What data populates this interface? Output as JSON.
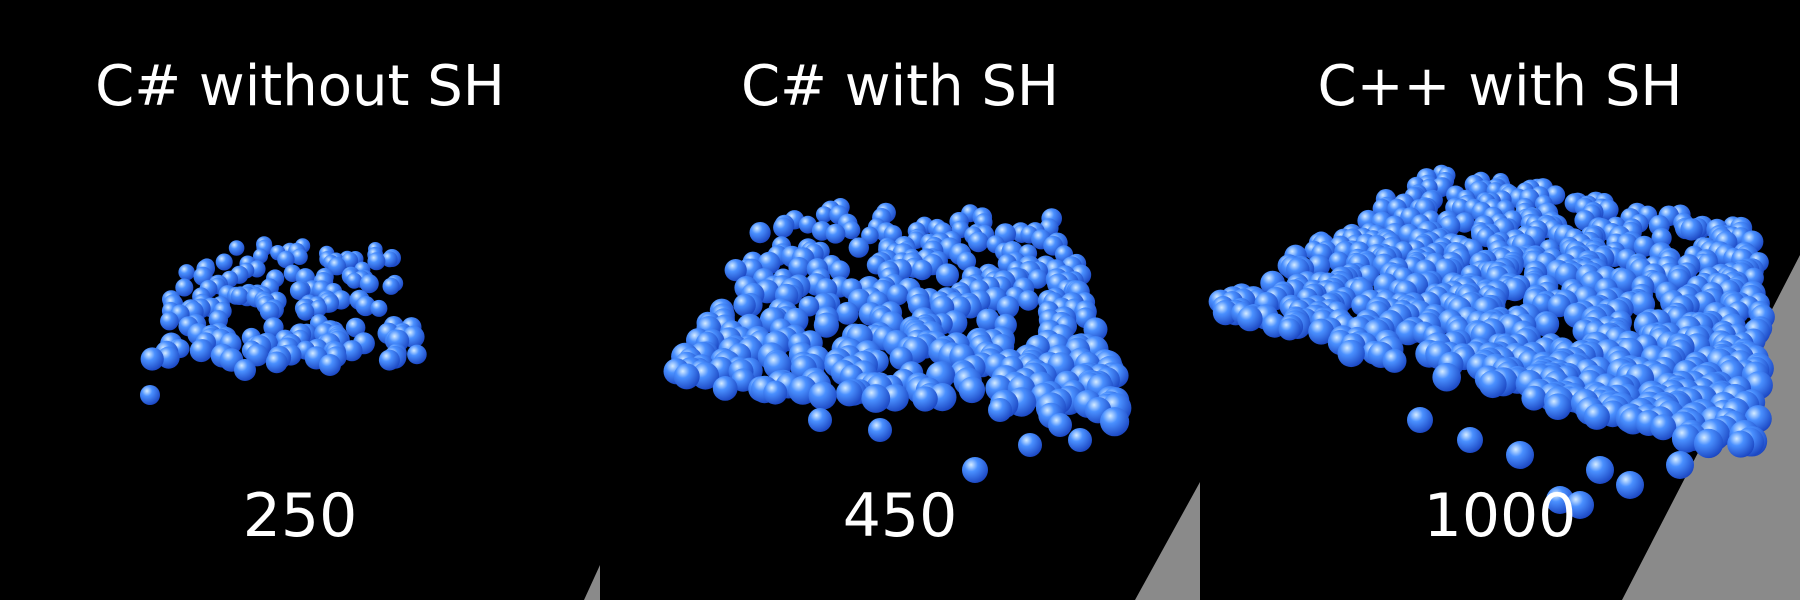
{
  "panels": [
    {
      "title": "C# without SH",
      "count": "250"
    },
    {
      "title": "C# with SH",
      "count": "450"
    },
    {
      "title": "C++ with SH",
      "count": "1000"
    }
  ],
  "colors": {
    "background": "#000000",
    "text": "#ffffff",
    "sphere_highlight": "#d6ecff",
    "sphere_mid": "#4a90ff",
    "sphere_shadow": "#1a44c0",
    "container_wall": "#8a8a8a"
  }
}
